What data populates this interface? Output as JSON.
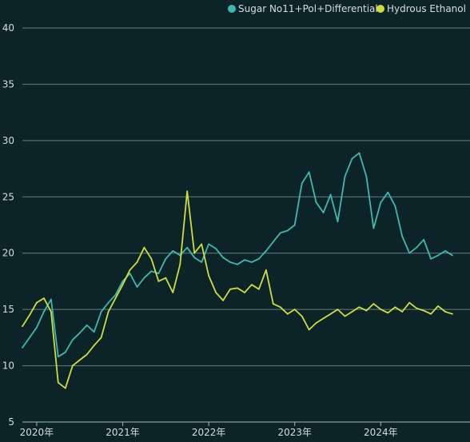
{
  "chart_data": {
    "type": "line",
    "title": "",
    "xlabel": "",
    "ylabel": "",
    "ylim": [
      5,
      40
    ],
    "y_ticks": [
      5,
      10,
      15,
      20,
      25,
      30,
      35,
      40
    ],
    "x_ticks": [
      "2020年",
      "2021年",
      "2022年",
      "2023年",
      "2024年"
    ],
    "grid": "horizontal",
    "legend_position": "top-right",
    "x": [
      "2019-11",
      "2019-12",
      "2020-01",
      "2020-02",
      "2020-03",
      "2020-04",
      "2020-05",
      "2020-06",
      "2020-07",
      "2020-08",
      "2020-09",
      "2020-10",
      "2020-11",
      "2020-12",
      "2021-01",
      "2021-02",
      "2021-03",
      "2021-04",
      "2021-05",
      "2021-06",
      "2021-07",
      "2021-08",
      "2021-09",
      "2021-10",
      "2021-11",
      "2021-12",
      "2022-01",
      "2022-02",
      "2022-03",
      "2022-04",
      "2022-05",
      "2022-06",
      "2022-07",
      "2022-08",
      "2022-09",
      "2022-10",
      "2022-11",
      "2022-12",
      "2023-01",
      "2023-02",
      "2023-03",
      "2023-04",
      "2023-05",
      "2023-06",
      "2023-07",
      "2023-08",
      "2023-09",
      "2023-10",
      "2023-11",
      "2023-12",
      "2024-01",
      "2024-02",
      "2024-03",
      "2024-04",
      "2024-05",
      "2024-06",
      "2024-07",
      "2024-08",
      "2024-09",
      "2024-10",
      "2024-11"
    ],
    "series": [
      {
        "name": "Sugar No11+Pol+Differential",
        "color": "#3dbab0",
        "values": [
          11.6,
          12.5,
          13.4,
          14.8,
          15.9,
          10.8,
          11.2,
          12.3,
          12.9,
          13.6,
          13.0,
          14.8,
          15.6,
          16.3,
          17.5,
          18.2,
          17.0,
          17.8,
          18.4,
          18.2,
          19.5,
          20.2,
          19.8,
          20.5,
          19.6,
          19.2,
          20.8,
          20.4,
          19.6,
          19.2,
          19.0,
          19.4,
          19.2,
          19.5,
          20.2,
          21.0,
          21.8,
          22.0,
          22.5,
          26.2,
          27.2,
          24.5,
          23.6,
          25.2,
          22.8,
          26.8,
          28.4,
          28.9,
          26.8,
          22.2,
          24.5,
          25.4,
          24.2,
          21.5,
          20.0,
          20.5,
          21.2,
          19.5,
          19.8,
          20.2,
          19.8
        ]
      },
      {
        "name": "Hydrous Ethanol",
        "color": "#cfde3b",
        "values": [
          13.5,
          14.5,
          15.6,
          16.0,
          14.8,
          8.5,
          8.0,
          10.0,
          10.5,
          11.0,
          11.8,
          12.5,
          14.8,
          16.0,
          17.2,
          18.5,
          19.2,
          20.5,
          19.5,
          17.5,
          17.8,
          16.5,
          19.0,
          25.5,
          20.0,
          20.8,
          18.0,
          16.5,
          15.8,
          16.8,
          16.9,
          16.5,
          17.2,
          16.8,
          18.5,
          15.5,
          15.2,
          14.6,
          15.0,
          14.4,
          13.2,
          13.8,
          14.2,
          14.6,
          15.0,
          14.4,
          14.8,
          15.2,
          14.9,
          15.5,
          15.0,
          14.7,
          15.2,
          14.8,
          15.6,
          15.1,
          14.9,
          14.6,
          15.3,
          14.8,
          14.6
        ]
      }
    ]
  }
}
